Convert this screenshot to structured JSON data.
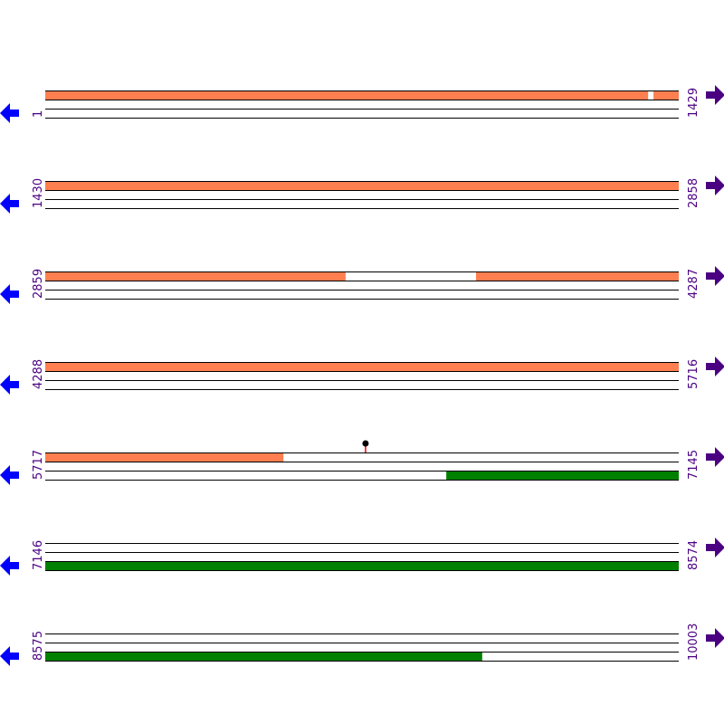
{
  "sequence_length": 10003,
  "rows": [
    {
      "start": 1,
      "end": 1429
    },
    {
      "start": 1430,
      "end": 2858
    },
    {
      "start": 2859,
      "end": 4287
    },
    {
      "start": 4288,
      "end": 5716
    },
    {
      "start": 5717,
      "end": 7145
    },
    {
      "start": 7146,
      "end": 8574
    },
    {
      "start": 8575,
      "end": 10003
    }
  ],
  "features": [
    {
      "track": 0,
      "start": 1,
      "end": 1360,
      "color": "#ff7f50"
    },
    {
      "track": 0,
      "start": 1372,
      "end": 3536,
      "color": "#ff7f50"
    },
    {
      "track": 0,
      "start": 3830,
      "end": 6254,
      "color": "#ff7f50"
    },
    {
      "track": 1,
      "start": 6621,
      "end": 9560,
      "color": "#008000"
    }
  ],
  "markers": [
    {
      "position": 6439,
      "stem_color": "#ff0000",
      "head_color": "#000000"
    }
  ],
  "colors": {
    "label": "#4b0082",
    "left_arrow": "#0000ff",
    "right_arrow": "#4b0082",
    "track_outline": "#000000"
  },
  "icons": {
    "left": "arrow-left-icon",
    "right": "arrow-right-icon"
  }
}
